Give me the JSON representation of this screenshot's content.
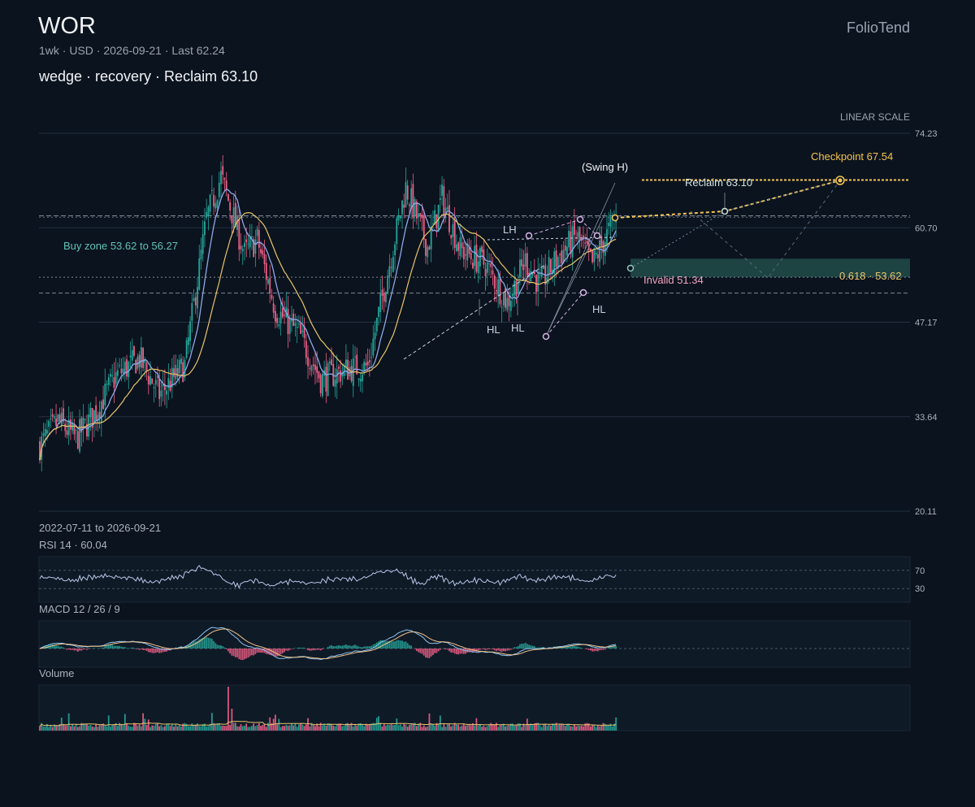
{
  "header": {
    "ticker": "WOR",
    "meta": "1wk · USD · 2026-09-21 · Last 62.24",
    "subtitle": "wedge · recovery · Reclaim 63.10",
    "brand": "FolioTend",
    "scale_label": "LINEAR SCALE",
    "date_range": "2022-07-11 to 2026-09-21"
  },
  "colors": {
    "background": "#0b131e",
    "up": "#26a69a",
    "down": "#ef5f86",
    "ma_fast": "#8ea7e9",
    "ma_slow": "#e9c46a",
    "accent": "#f5c451",
    "zone": "#2d6b62"
  },
  "chart_data": [
    {
      "type": "candlestick",
      "title": "WOR",
      "y_ticks": [
        74.23,
        60.7,
        47.17,
        33.64,
        20.11
      ],
      "ylim": [
        20.11,
        74.23
      ],
      "x_start": "2022-07-11",
      "x_end": "2026-09-21",
      "last": 62.24,
      "grid": true,
      "scale": "linear",
      "price_anchors": [
        [
          0,
          29.5
        ],
        [
          10,
          33.0
        ],
        [
          20,
          30.5
        ],
        [
          30,
          34.0
        ],
        [
          42,
          39.5
        ],
        [
          55,
          42.0
        ],
        [
          66,
          36.8
        ],
        [
          80,
          41.0
        ],
        [
          92,
          62.0
        ],
        [
          100,
          68.0
        ],
        [
          113,
          57.0
        ],
        [
          120,
          59.0
        ],
        [
          130,
          49.0
        ],
        [
          143,
          45.5
        ],
        [
          155,
          39.0
        ],
        [
          170,
          40.5
        ],
        [
          181,
          40.8
        ],
        [
          190,
          52.0
        ],
        [
          202,
          66.5
        ],
        [
          214,
          58.0
        ],
        [
          222,
          65.0
        ],
        [
          232,
          57.5
        ],
        [
          246,
          55.5
        ],
        [
          258,
          50.0
        ],
        [
          268,
          56.0
        ],
        [
          276,
          52.5
        ],
        [
          286,
          56.5
        ],
        [
          296,
          59.5
        ],
        [
          305,
          55.5
        ],
        [
          318,
          62.24
        ]
      ],
      "overlays": {
        "ma_fast": "MA fast",
        "ma_slow": "MA slow"
      },
      "levels": {
        "reclaim": 63.1,
        "checkpoint": 67.54,
        "invalid": 51.34,
        "fib_0618": 53.62,
        "buy_zone_low": 53.62,
        "buy_zone_high": 56.27,
        "upper_dash": 62.4
      },
      "annotations": {
        "swing_h": "(Swing H)",
        "checkpoint": "Checkpoint 67.54",
        "reclaim": "Reclaim 63.10",
        "invalid": "Invalid 51.34",
        "fib": "0.618 · 53.62",
        "buy_zone": "Buy zone 53.62 to 56.27",
        "lh": "LH",
        "hl1": "HL",
        "hl2": "HL",
        "hl3": "HL"
      }
    },
    {
      "type": "line",
      "title": "RSI 14 · 60.04",
      "value": 60.04,
      "period": 14,
      "levels": [
        70,
        30
      ],
      "ylim": [
        0,
        100
      ]
    },
    {
      "type": "line",
      "title": "MACD 12 / 26 / 9",
      "params": [
        12,
        26,
        9
      ]
    },
    {
      "type": "bar",
      "title": "Volume"
    }
  ]
}
